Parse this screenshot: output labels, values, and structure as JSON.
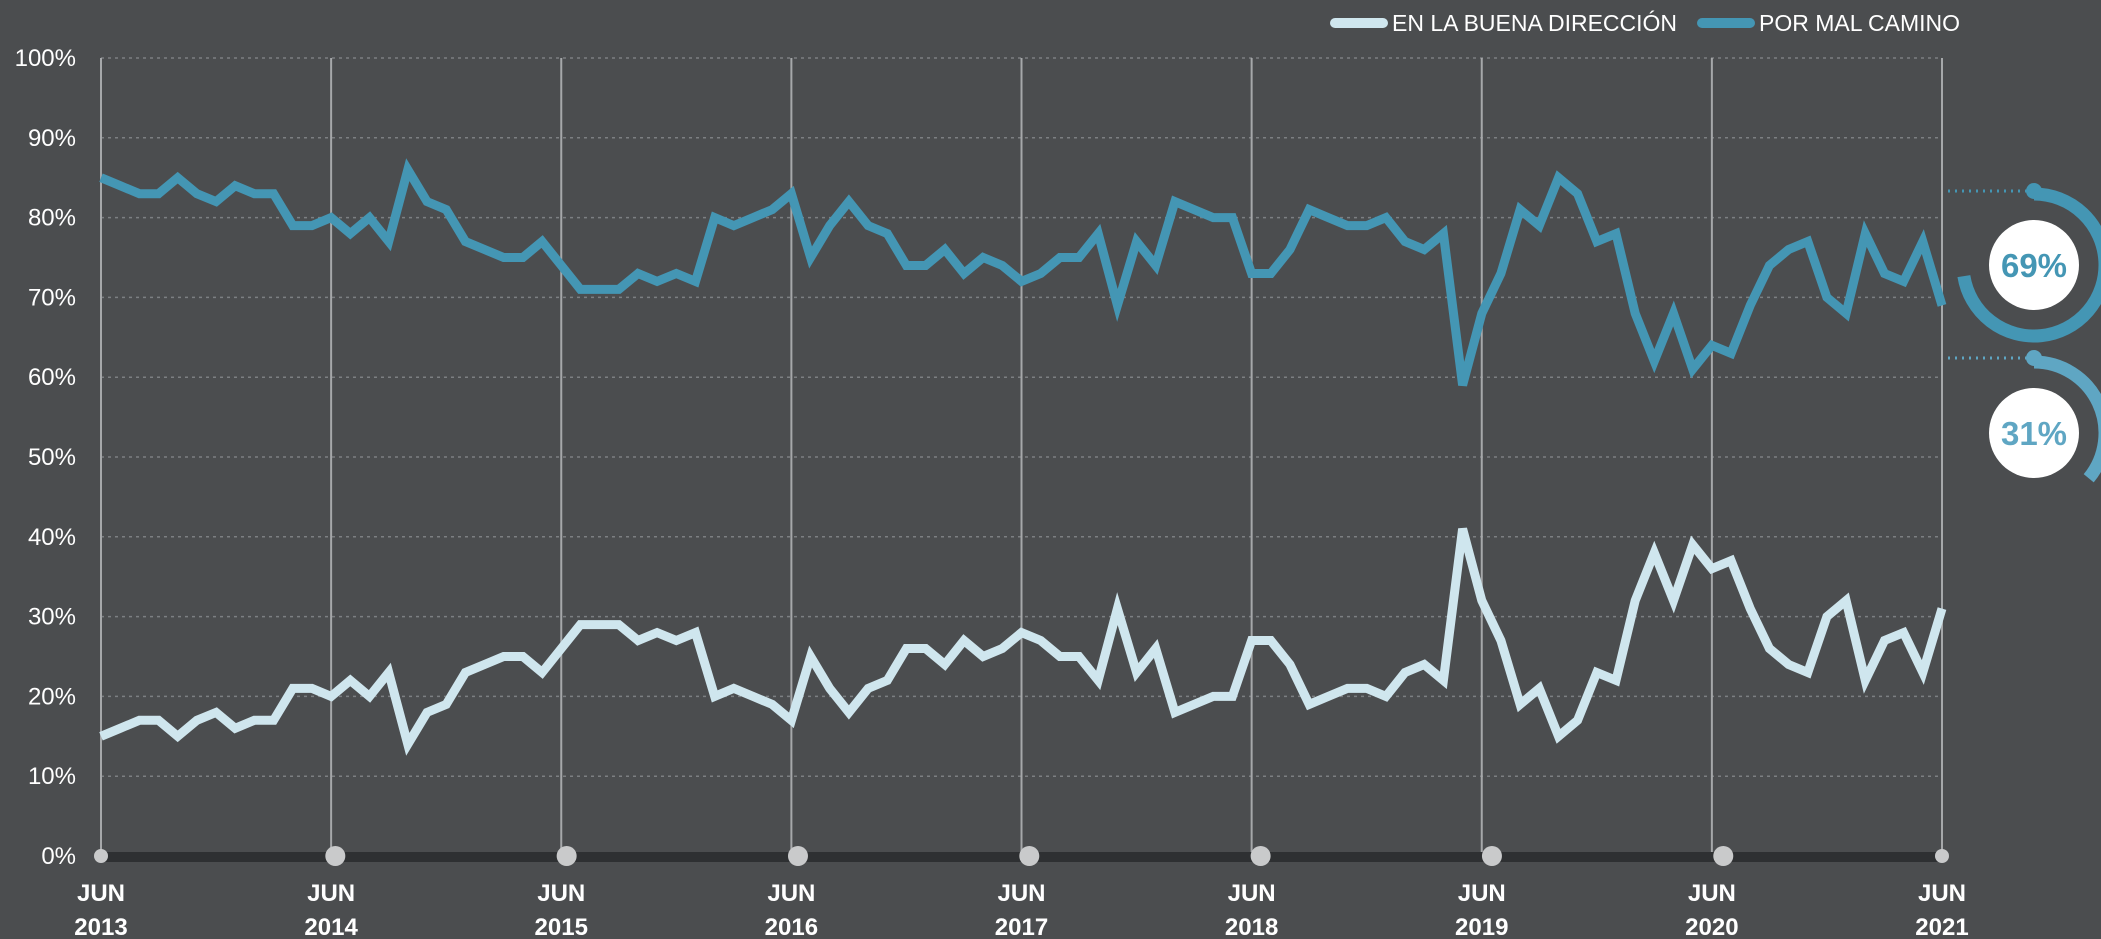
{
  "chart_data": {
    "type": "line",
    "x_start": "2013-06",
    "x_end": "2021-06",
    "x_ticks": [
      {
        "month": "JUN",
        "year": "2013"
      },
      {
        "month": "JUN",
        "year": "2014"
      },
      {
        "month": "JUN",
        "year": "2015"
      },
      {
        "month": "JUN",
        "year": "2016"
      },
      {
        "month": "JUN",
        "year": "2017"
      },
      {
        "month": "JUN",
        "year": "2018"
      },
      {
        "month": "JUN",
        "year": "2019"
      },
      {
        "month": "JUN",
        "year": "2020"
      },
      {
        "month": "JUN",
        "year": "2021"
      }
    ],
    "y_ticks": [
      "0%",
      "10%",
      "20%",
      "30%",
      "40%",
      "50%",
      "60%",
      "70%",
      "80%",
      "90%",
      "100%"
    ],
    "ylim": [
      0,
      100
    ],
    "y_unit": "%",
    "grid": "horizontal-dotted",
    "legend_position": "top-right",
    "series": [
      {
        "name": "EN LA BUENA DIRECCIÓN",
        "color": "#cfe6ee",
        "final_label": "31%",
        "values": [
          15,
          16,
          17,
          17,
          15,
          17,
          18,
          16,
          17,
          17,
          21,
          21,
          20,
          22,
          20,
          23,
          14,
          18,
          19,
          23,
          24,
          25,
          25,
          23,
          26,
          29,
          29,
          29,
          27,
          28,
          27,
          28,
          20,
          21,
          20,
          19,
          17,
          25,
          21,
          18,
          21,
          22,
          26,
          26,
          24,
          27,
          25,
          26,
          28,
          27,
          25,
          25,
          22,
          31,
          23,
          26,
          18,
          19,
          20,
          20,
          27,
          27,
          24,
          19,
          20,
          21,
          21,
          20,
          23,
          24,
          22,
          41,
          32,
          27,
          19,
          21,
          15,
          17,
          23,
          22,
          32,
          38,
          32,
          39,
          36,
          37,
          31,
          26,
          24,
          23,
          30,
          32,
          22,
          27,
          28,
          23,
          31
        ]
      },
      {
        "name": "POR MAL CAMINO",
        "color": "#4496b4",
        "final_label": "69%",
        "values": [
          85,
          84,
          83,
          83,
          85,
          83,
          82,
          84,
          83,
          83,
          79,
          79,
          80,
          78,
          80,
          77,
          86,
          82,
          81,
          77,
          76,
          75,
          75,
          77,
          74,
          71,
          71,
          71,
          73,
          72,
          73,
          72,
          80,
          79,
          80,
          81,
          83,
          75,
          79,
          82,
          79,
          78,
          74,
          74,
          76,
          73,
          75,
          74,
          72,
          73,
          75,
          75,
          78,
          69,
          77,
          74,
          82,
          81,
          80,
          80,
          73,
          73,
          76,
          81,
          80,
          79,
          79,
          80,
          77,
          76,
          78,
          59,
          68,
          73,
          81,
          79,
          85,
          83,
          77,
          78,
          68,
          62,
          68,
          61,
          64,
          63,
          69,
          74,
          76,
          77,
          70,
          68,
          78,
          73,
          72,
          77,
          69
        ]
      }
    ]
  }
}
